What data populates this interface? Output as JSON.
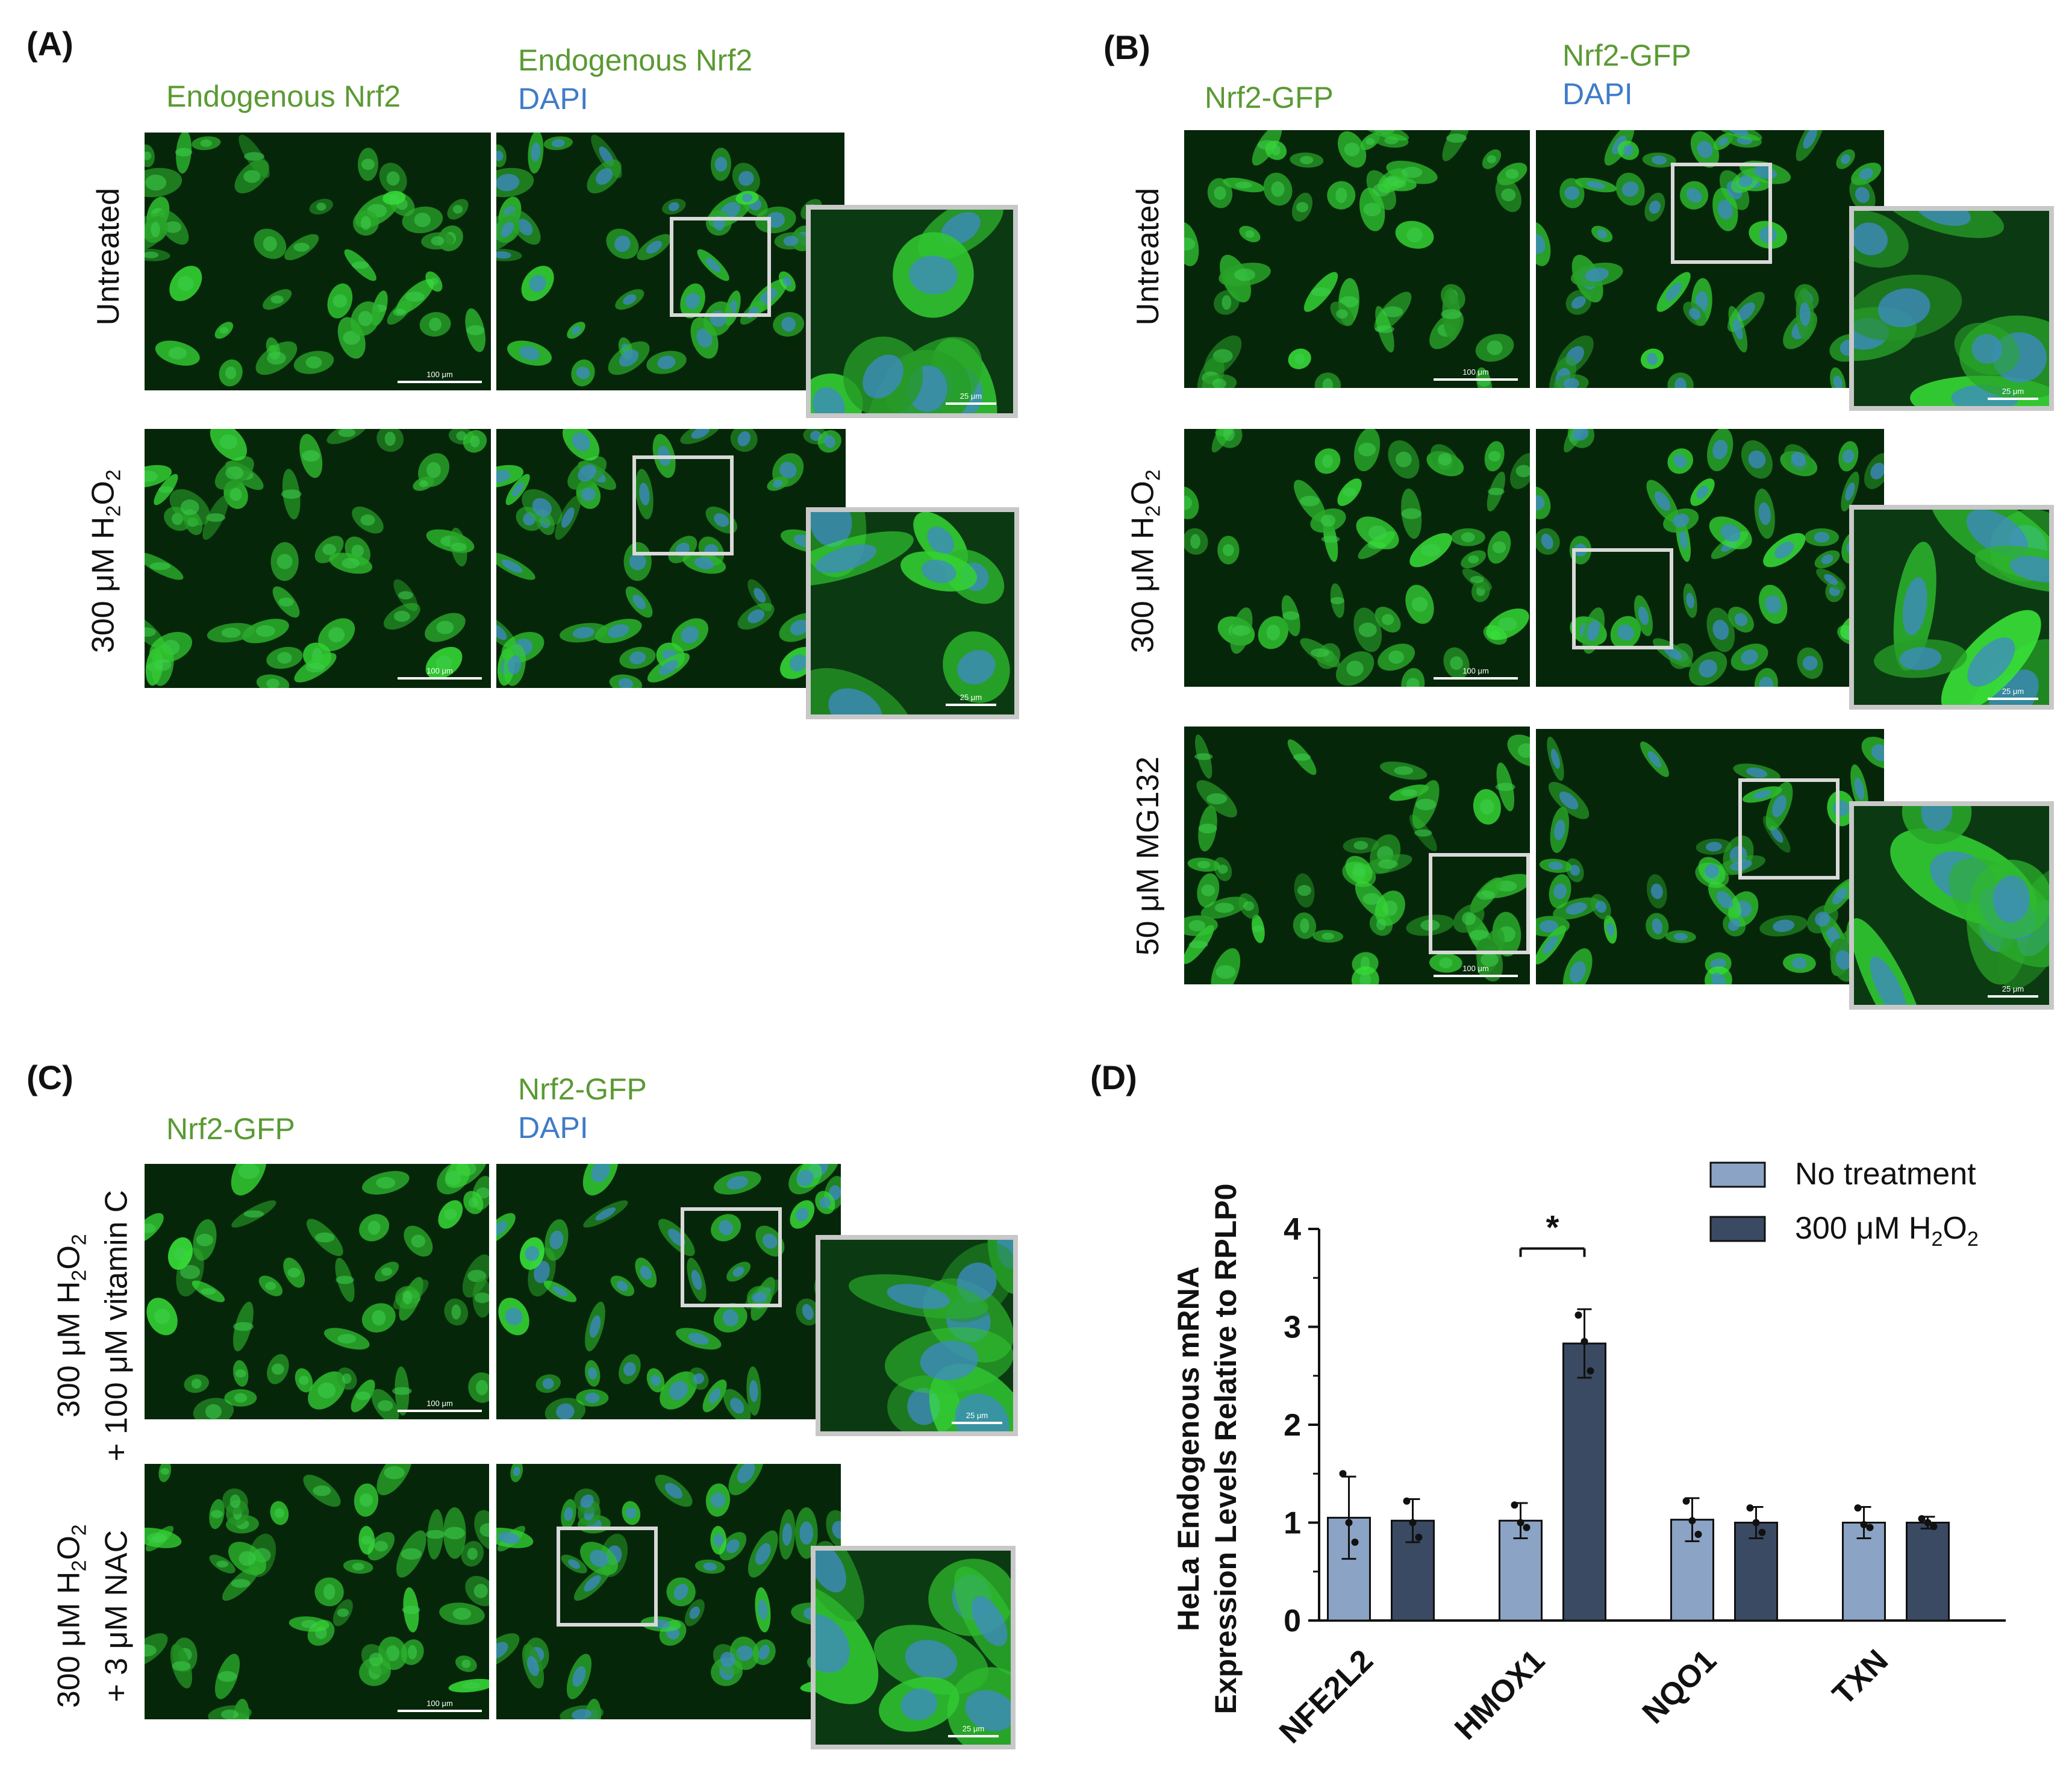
{
  "panels": {
    "A": {
      "label": "(A)",
      "col1": {
        "line1": "Endogenous Nrf2"
      },
      "col2": {
        "line1": "Endogenous Nrf2",
        "line2": "DAPI"
      },
      "rows": [
        "Untreated",
        "300 μM H"
      ],
      "row2_sub": "2",
      "row2_tail": "O",
      "scale_big": "100 μm",
      "scale_small": "25 μm"
    },
    "B": {
      "label": "(B)",
      "col1": {
        "line1": "Nrf2-GFP"
      },
      "col2": {
        "line1": "Nrf2-GFP",
        "line2": "DAPI"
      },
      "rows": [
        "Untreated",
        "300 μM H",
        "50 μM MG132"
      ],
      "scale_big": "100 μm",
      "scale_small": "25 μm"
    },
    "C": {
      "label": "(C)",
      "col1": {
        "line1": "Nrf2-GFP"
      },
      "col2": {
        "line1": "Nrf2-GFP",
        "line2": "DAPI"
      },
      "row1_line1": "300 μM H",
      "row1_line2": "+ 100 μM vitamin C",
      "row2_line1": "300 μM H",
      "row2_line2": "+ 3 μM NAC",
      "scale_big": "100 μm",
      "scale_small": "25 μm"
    },
    "D": {
      "label": "(D)"
    }
  },
  "chart_data": {
    "type": "bar",
    "ylabel_line1": "HeLa Endogenous mRNA",
    "ylabel_line2": "Expression Levels Relative to RPLP0",
    "categories": [
      "NFE2L2",
      "HMOX1",
      "NQO1",
      "TXN"
    ],
    "yticks": [
      "0",
      "1",
      "2",
      "3",
      "4"
    ],
    "ylim": [
      0,
      4
    ],
    "series": [
      {
        "name": "No treatment",
        "color": "#8ba3c4",
        "values": [
          1.05,
          1.02,
          1.03,
          1.0
        ],
        "errors": [
          0.42,
          0.18,
          0.22,
          0.16
        ],
        "points": [
          [
            1.5,
            1.0,
            0.8
          ],
          [
            1.18,
            1.0,
            0.95
          ],
          [
            1.22,
            1.02,
            0.88
          ],
          [
            1.15,
            0.98,
            0.95
          ]
        ]
      },
      {
        "name": "300 μM H2O2",
        "color": "#3b4a63",
        "values": [
          1.02,
          2.83,
          1.0,
          1.0
        ],
        "errors": [
          0.22,
          0.35,
          0.16,
          0.06
        ],
        "points": [
          [
            1.22,
            1.0,
            0.85
          ],
          [
            3.12,
            2.85,
            2.55
          ],
          [
            1.15,
            1.0,
            0.9
          ],
          [
            1.04,
            1.0,
            0.96
          ]
        ]
      }
    ],
    "legend": [
      "No treatment",
      "300 μM H2O2"
    ],
    "legend_h2o2": {
      "prefix": "300 μM H",
      "sub": "2",
      "mid": "O",
      "sub2": "2"
    },
    "significance": {
      "text": "*",
      "between": "HMOX1"
    }
  }
}
